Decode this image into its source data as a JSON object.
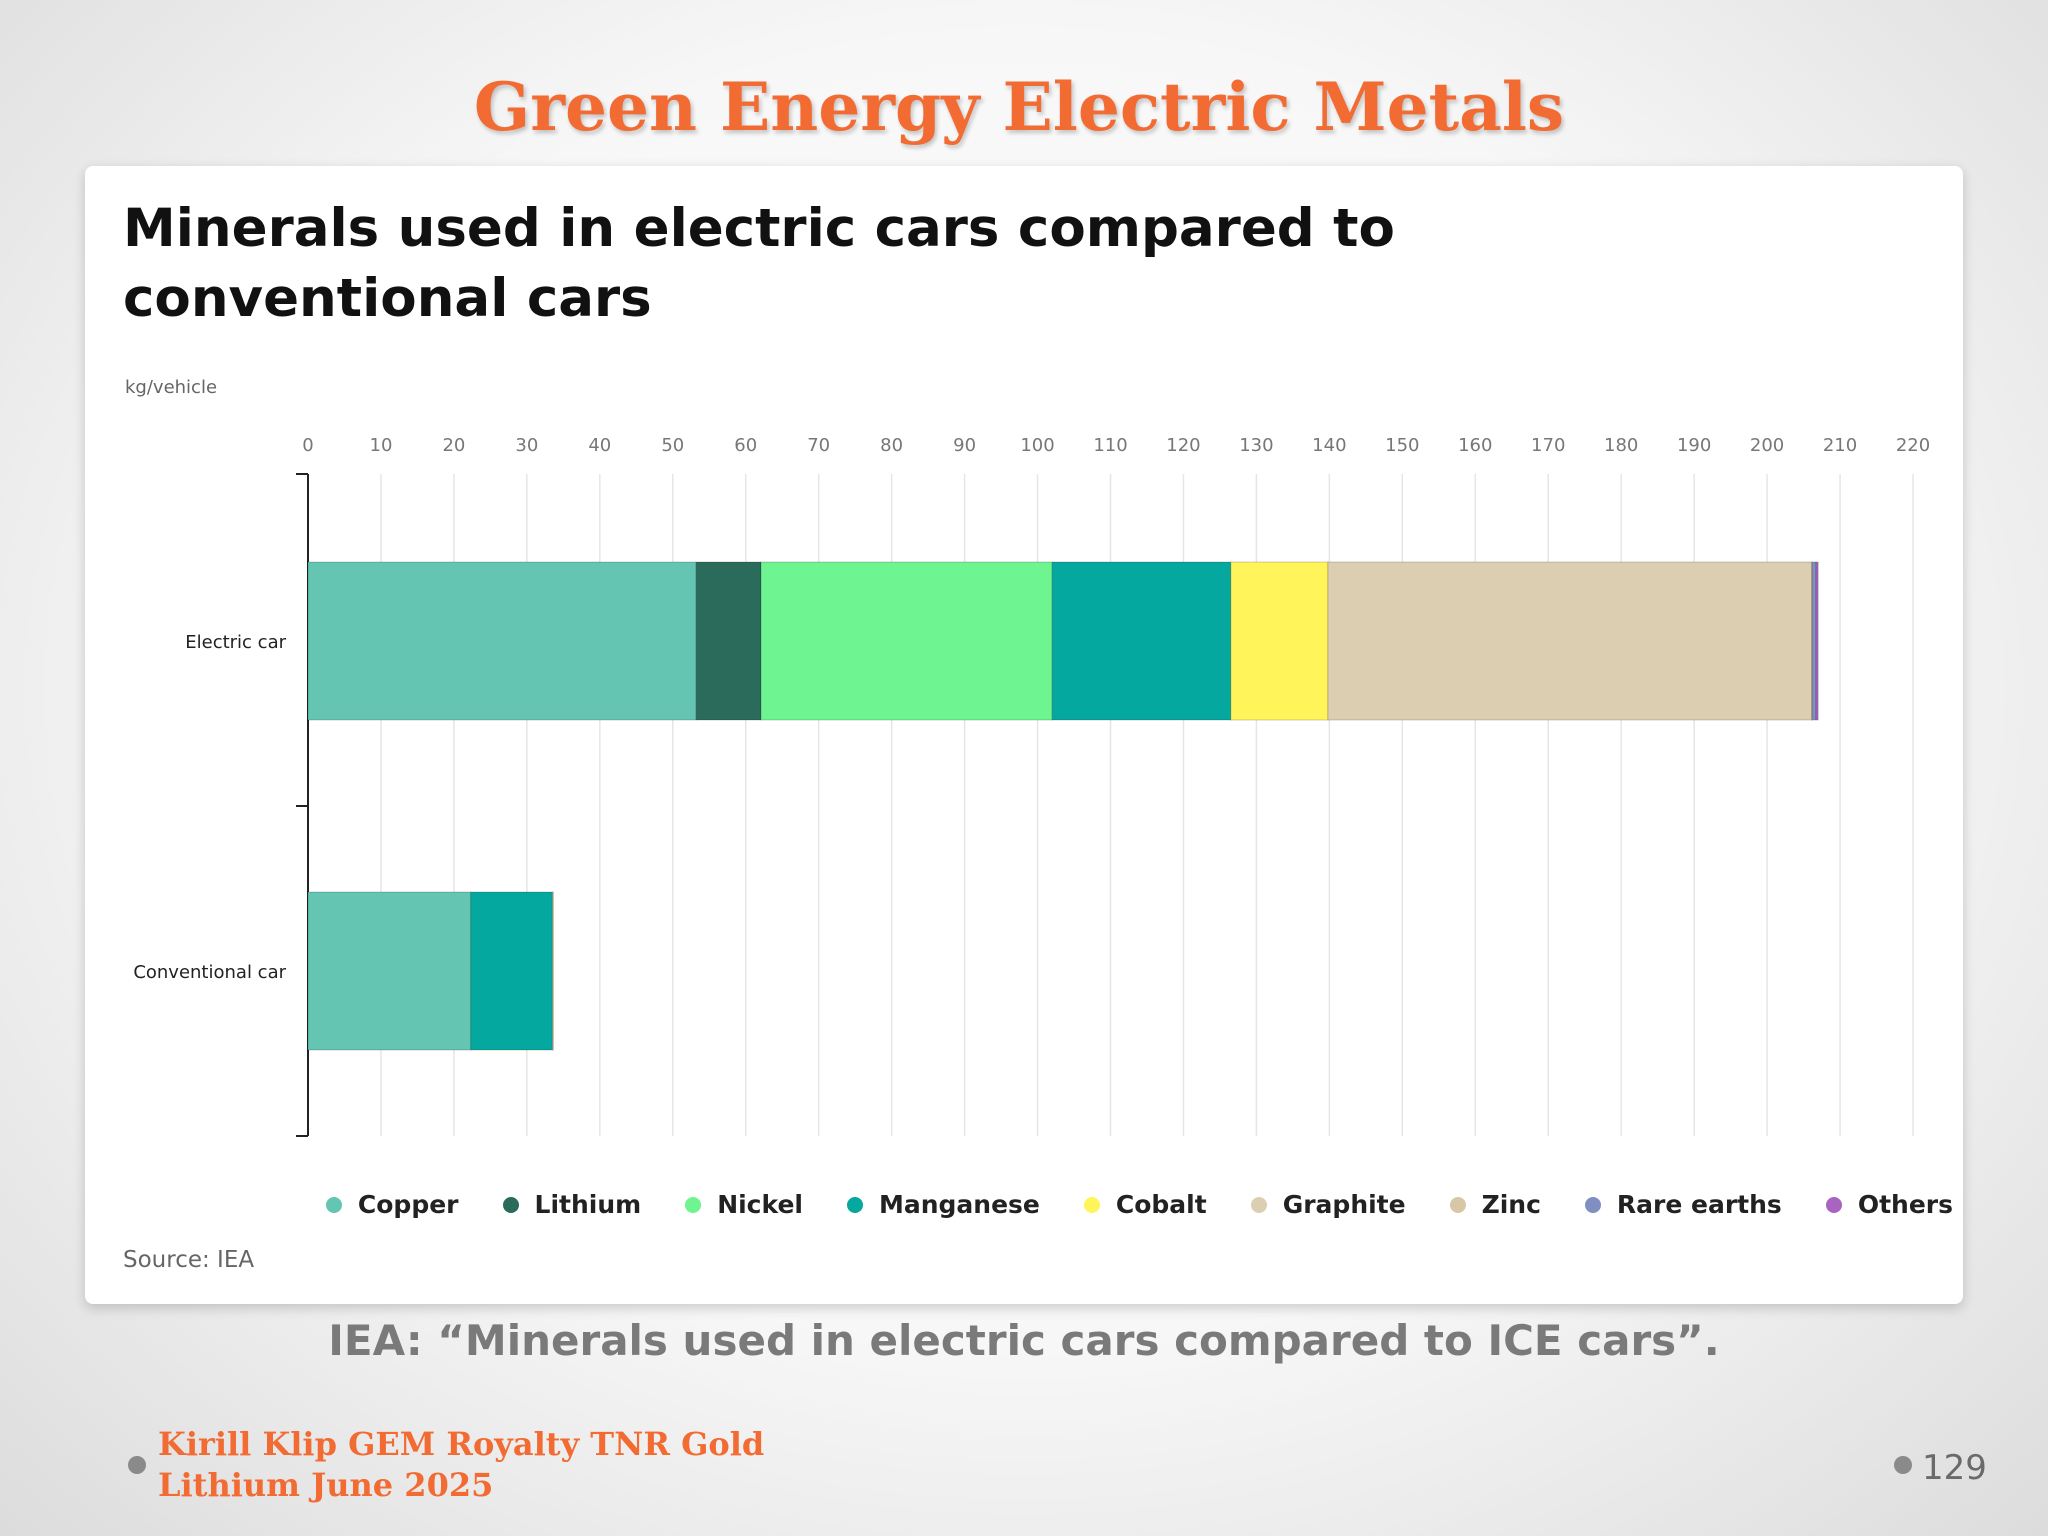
{
  "slide": {
    "title": "Green Energy Electric Metals",
    "caption": "IEA: “Minerals used in electric cars compared to ICE cars”.",
    "footer_line1": "Kirill Klip GEM Royalty TNR Gold",
    "footer_line2": "Lithium June 2025",
    "page_number": "129"
  },
  "chart_data": {
    "type": "bar",
    "orientation": "horizontal",
    "stacked": true,
    "title": "Minerals used in electric cars compared to conventional cars",
    "unit_label": "kg/vehicle",
    "source": "Source: IEA",
    "categories": [
      "Electric car",
      "Conventional car"
    ],
    "xlim": [
      0,
      220
    ],
    "x_ticks": [
      0,
      10,
      20,
      30,
      40,
      50,
      60,
      70,
      80,
      90,
      100,
      110,
      120,
      130,
      140,
      150,
      160,
      170,
      180,
      190,
      200,
      210,
      220
    ],
    "grid": true,
    "legend_position": "bottom",
    "series": [
      {
        "name": "Copper",
        "color": "#63c5b2",
        "values": [
          53.2,
          22.3
        ]
      },
      {
        "name": "Lithium",
        "color": "#2b6b5b",
        "values": [
          8.9,
          0
        ]
      },
      {
        "name": "Nickel",
        "color": "#6ef491",
        "values": [
          39.9,
          0
        ]
      },
      {
        "name": "Manganese",
        "color": "#04a89f",
        "values": [
          24.5,
          11.2
        ]
      },
      {
        "name": "Cobalt",
        "color": "#fff55a",
        "values": [
          13.3,
          0
        ]
      },
      {
        "name": "Graphite",
        "color": "#dccfb1",
        "values": [
          66.3,
          0
        ]
      },
      {
        "name": "Zinc",
        "color": "#d8c7a6",
        "values": [
          0.1,
          0.1
        ]
      },
      {
        "name": "Rare earths",
        "color": "#7f8fc2",
        "values": [
          0.5,
          0
        ]
      },
      {
        "name": "Others",
        "color": "#a964c1",
        "values": [
          0.3,
          0
        ]
      }
    ]
  }
}
